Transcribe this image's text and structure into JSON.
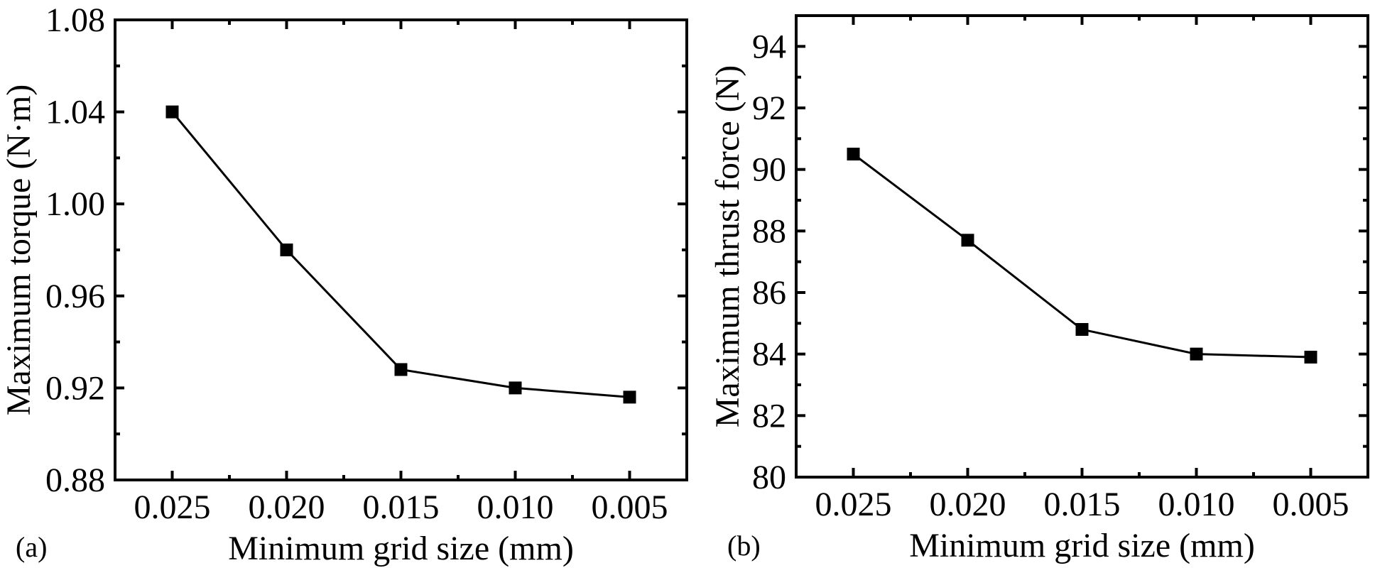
{
  "chart_data": [
    {
      "panel": "(a)",
      "type": "line",
      "title": "",
      "xlabel": "Minimum grid size (mm)",
      "ylabel": "Maximum torque (N·m)",
      "x": [
        0.025,
        0.02,
        0.015,
        0.01,
        0.005
      ],
      "x_tick_labels": [
        "0.025",
        "0.020",
        "0.015",
        "0.010",
        "0.005"
      ],
      "x_reversed": true,
      "xlim": [
        0.0275,
        0.0025
      ],
      "ylim": [
        0.88,
        1.08
      ],
      "y_ticks": [
        0.88,
        0.92,
        0.96,
        1.0,
        1.04,
        1.08
      ],
      "y_tick_labels": [
        "0.88",
        "0.92",
        "0.96",
        "1.00",
        "1.04",
        "1.08"
      ],
      "y_minor_step": 0.02,
      "grid": false,
      "legend": "none",
      "marker": "filled-square",
      "color": "#000000",
      "series": [
        {
          "name": "Maximum torque",
          "values": [
            1.04,
            0.98,
            0.928,
            0.92,
            0.916
          ]
        }
      ]
    },
    {
      "panel": "(b)",
      "type": "line",
      "title": "",
      "xlabel": "Minimum grid size (mm)",
      "ylabel": "Maximum thrust force (N)",
      "x": [
        0.025,
        0.02,
        0.015,
        0.01,
        0.005
      ],
      "x_tick_labels": [
        "0.025",
        "0.020",
        "0.015",
        "0.010",
        "0.005"
      ],
      "x_reversed": true,
      "xlim": [
        0.0275,
        0.0025
      ],
      "ylim": [
        80,
        95
      ],
      "y_ticks": [
        80,
        82,
        84,
        86,
        88,
        90,
        92,
        94
      ],
      "y_tick_labels": [
        "80",
        "82",
        "84",
        "86",
        "88",
        "90",
        "92",
        "94"
      ],
      "y_minor_step": 1,
      "grid": false,
      "legend": "none",
      "marker": "filled-square",
      "color": "#000000",
      "series": [
        {
          "name": "Maximum thrust force",
          "values": [
            90.5,
            87.7,
            84.8,
            84.0,
            83.9
          ]
        }
      ]
    }
  ]
}
